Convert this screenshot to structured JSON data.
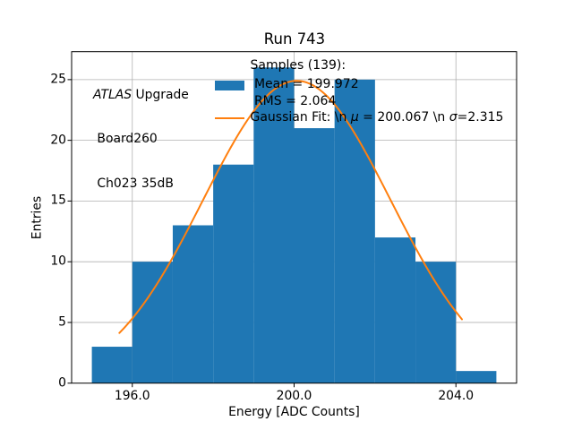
{
  "annotation": {
    "atlas": "ATLAS",
    "line1_rest": " Upgrade",
    "line2": " Board260",
    "line3": " Ch023 35dB"
  },
  "legend": {
    "samples_title": "Samples (139):",
    "mean_line": " Mean = 199.972",
    "rms_line": " RMS = 2.064",
    "gauss_prefix": "Gaussian Fit: \\n ",
    "gauss_mu": "μ",
    "gauss_mid": " = 200.067 \\n ",
    "gauss_sigma": "σ",
    "gauss_suffix": "=2.315"
  },
  "chart_data": {
    "type": "bar",
    "subtype": "histogram",
    "title": "Run 743",
    "xlabel": "Energy [ADC Counts]",
    "ylabel": "Entries",
    "bin_edges": [
      195,
      196,
      197,
      198,
      199,
      200,
      201,
      202,
      203,
      204,
      205
    ],
    "counts": [
      3,
      10,
      13,
      18,
      26,
      21,
      25,
      12,
      10,
      1
    ],
    "stats": {
      "samples": 139,
      "mean": 199.972,
      "rms": 2.064
    },
    "fit": {
      "type": "gaussian",
      "mu": 200.067,
      "sigma": 2.315,
      "amplitude": 24.9,
      "x_start": 195.68,
      "x_end": 204.15
    },
    "xlim": [
      194.5,
      205.5
    ],
    "ylim": [
      0,
      27.3
    ],
    "x_tick_values": [
      196,
      200,
      204
    ],
    "x_tick_labels": [
      "196.0",
      "200.0",
      "204.0"
    ],
    "y_tick_values": [
      0,
      5,
      10,
      15,
      20,
      25
    ],
    "y_tick_labels": [
      "0",
      "5",
      "10",
      "15",
      "20",
      "25"
    ],
    "grid": true,
    "legend_location": "upper center",
    "legend_frame": false,
    "legend_entries": [
      "Samples (139):\n Mean = 199.972\n RMS = 2.064",
      "Gaussian Fit: \\n μ = 200.067 \\n σ=2.315"
    ],
    "annotation_text": "ATLAS Upgrade\n Board260\n Ch023 35dB",
    "colors": {
      "bar": "#1f77b4",
      "fit": "#ff7f0e",
      "grid": "#b0b0b0",
      "spine": "#000000",
      "text": "#000000",
      "background": "#ffffff"
    }
  }
}
